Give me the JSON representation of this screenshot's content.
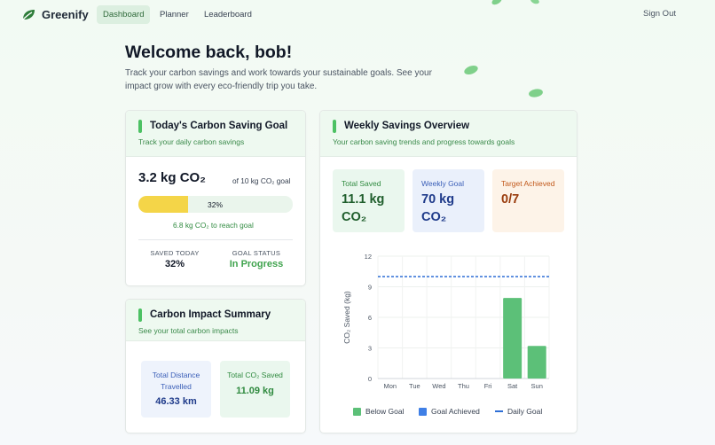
{
  "app": {
    "name": "Greenify"
  },
  "nav": {
    "links": [
      "Dashboard",
      "Planner",
      "Leaderboard"
    ],
    "sign_out": "Sign Out"
  },
  "header": {
    "welcome": "Welcome back, bob!",
    "intro": "Track your carbon savings and work towards your sustainable goals. See your impact grow with every eco-friendly trip you take."
  },
  "goal_card": {
    "title": "Today's Carbon Saving Goal",
    "subtitle": "Track your daily carbon savings",
    "value": "3.2 kg CO₂",
    "of_goal": "of 10 kg CO₂ goal",
    "progress_label": "32%",
    "progress": 0.32,
    "to_reach": "6.8 kg CO₂ to reach goal",
    "saved_today_label": "SAVED TODAY",
    "saved_today_value": "32%",
    "goal_status_label": "GOAL STATUS",
    "goal_status_value": "In Progress"
  },
  "impact_card": {
    "title": "Carbon Impact Summary",
    "subtitle": "See your total carbon impacts",
    "distance_label": "Total Distance Travelled",
    "distance_value": "46.33 km",
    "co2_label": "Total CO₂ Saved",
    "co2_value": "11.09 kg"
  },
  "weekly_card": {
    "title": "Weekly Savings Overview",
    "subtitle": "Your carbon saving trends and progress towards goals",
    "kpis": [
      {
        "label": "Total Saved",
        "value": "11.1 kg CO₂"
      },
      {
        "label": "Weekly Goal",
        "value": "70 kg CO₂"
      },
      {
        "label": "Target Achieved",
        "value": "0/7"
      }
    ]
  },
  "colors": {
    "accent": "#4cc163",
    "below_goal": "#5cc078",
    "goal_achieved": "#3f7fe6",
    "daily_goal": "#2f6fd6",
    "progress_fill": "#f4d548"
  },
  "chart_data": {
    "type": "bar",
    "categories": [
      "Mon",
      "Tue",
      "Wed",
      "Thu",
      "Fri",
      "Sat",
      "Sun"
    ],
    "series": [
      {
        "name": "Below Goal",
        "values": [
          0,
          0,
          0,
          0,
          0,
          7.9,
          3.2
        ]
      },
      {
        "name": "Goal Achieved",
        "values": [
          0,
          0,
          0,
          0,
          0,
          0,
          0
        ]
      }
    ],
    "reference_line": {
      "name": "Daily Goal",
      "value": 10
    },
    "ylabel": "CO₂ Saved (kg)",
    "xlabel": "",
    "ylim": [
      0,
      12
    ],
    "yticks": [
      0,
      3,
      6,
      9,
      12
    ],
    "grid": true,
    "legend": "bottom"
  }
}
